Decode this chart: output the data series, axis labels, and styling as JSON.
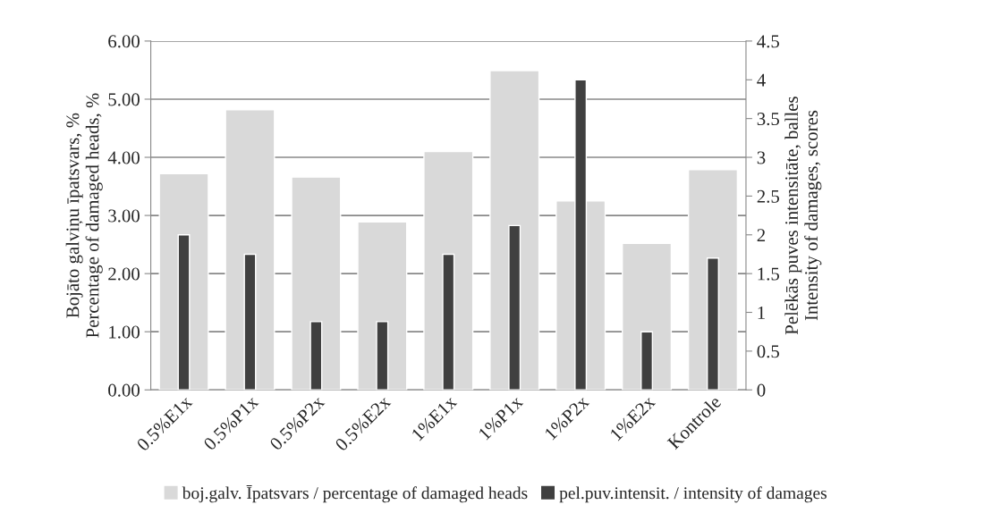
{
  "chart_data": {
    "type": "bar",
    "categories": [
      "0.5%E1x",
      "0.5%P1x",
      "0.5%P2x",
      "0.5%E2x",
      "1%E1x",
      "1%P1x",
      "1%P2x",
      "1%E2x",
      "Kontrole"
    ],
    "series": [
      {
        "name": "boj.galv. Īpatsvars / percentage of damaged heads",
        "color": "#d9d9d9",
        "values": [
          3.72,
          4.82,
          3.66,
          2.89,
          4.1,
          5.49,
          3.25,
          2.52,
          3.79
        ]
      },
      {
        "name": "pel.puv.intensit. / intensity of damages",
        "color": "#404040",
        "axis": "y2",
        "values": [
          2.0,
          1.75,
          0.88,
          0.88,
          1.75,
          2.12,
          4.0,
          0.75,
          1.7
        ]
      }
    ],
    "ylabel": "Bojāto galviņu īpatsvars, %\nPercentage of damaged heads, %",
    "y2label": "Pelēkās puves intensitāte, balles\nIntensity of damages, scores",
    "ylim": [
      0,
      6
    ],
    "yticks": [
      {
        "value": 0,
        "label": "0.00"
      },
      {
        "value": 1,
        "label": "1.00"
      },
      {
        "value": 2,
        "label": "2.00"
      },
      {
        "value": 3,
        "label": "3.00"
      },
      {
        "value": 4,
        "label": "4.00"
      },
      {
        "value": 5,
        "label": "5.00"
      },
      {
        "value": 6,
        "label": "6.00"
      }
    ],
    "y2lim": [
      0,
      4.5
    ],
    "y2ticks": [
      0,
      0.5,
      1,
      1.5,
      2,
      2.5,
      3,
      3.5,
      4,
      4.5
    ],
    "grid": "y",
    "legend": "bottom"
  }
}
